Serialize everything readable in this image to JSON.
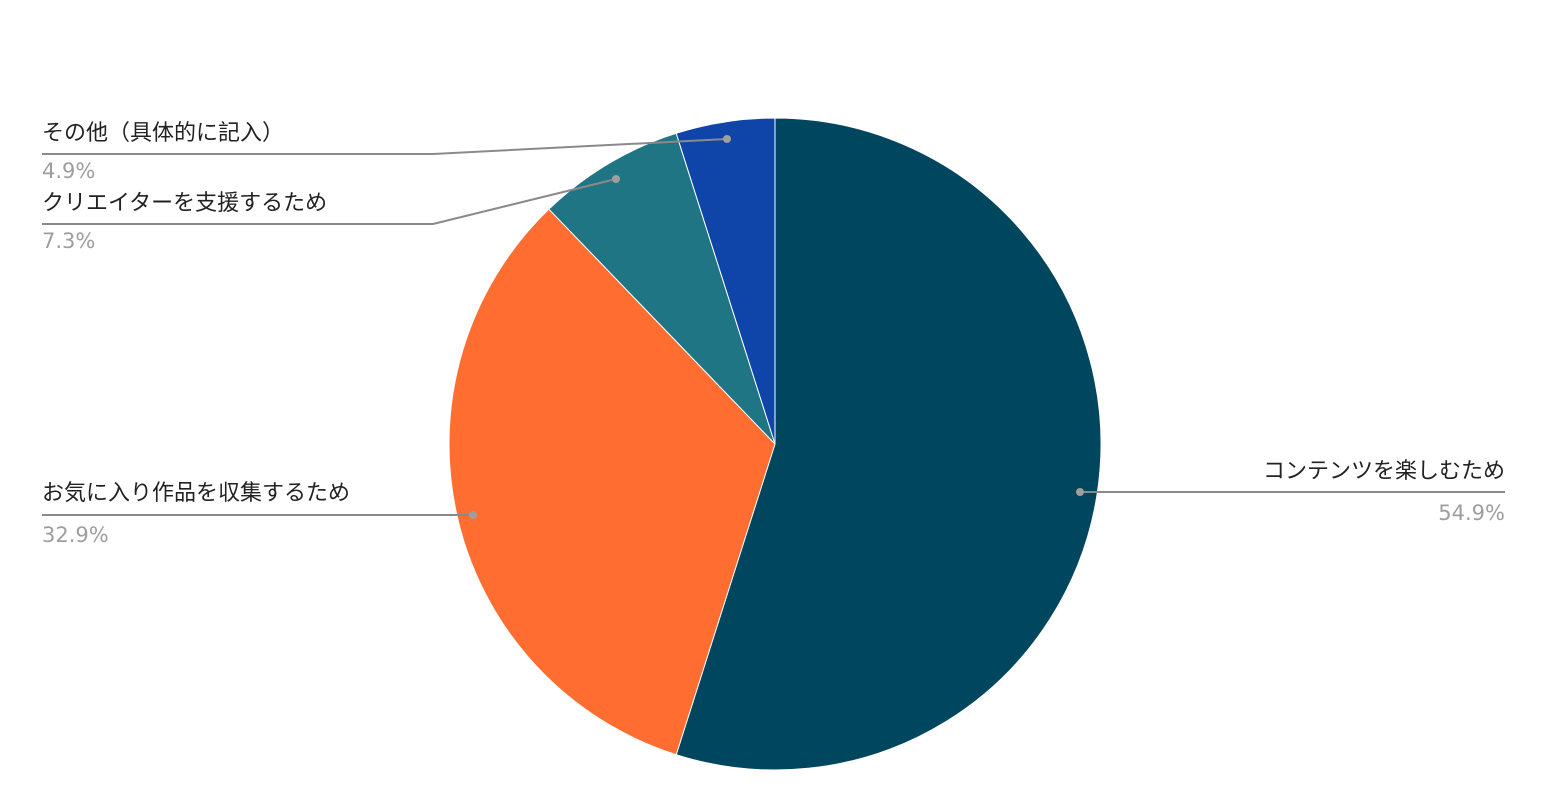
{
  "chart_data": {
    "type": "pie",
    "categories": [
      "コンテンツを楽しむため",
      "お気に入り作品を収集するため",
      "クリエイターを支援するため",
      "その他（具体的に記入）"
    ],
    "values": [
      54.9,
      32.9,
      7.3,
      4.9
    ],
    "value_labels": [
      "54.9%",
      "32.9%",
      "7.3%",
      "4.9%"
    ],
    "colors": [
      "#00465f",
      "#ff6d31",
      "#1f7584",
      "#0f45a8"
    ]
  }
}
